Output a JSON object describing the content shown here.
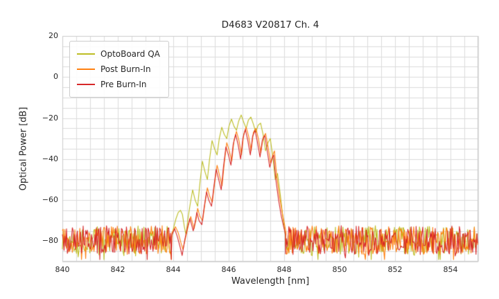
{
  "chart_data": {
    "type": "line",
    "title": "D4683 V20817 Ch. 4",
    "xlabel": "Wavelength [nm]",
    "ylabel": "Optical Power [dB]",
    "xlim": [
      840,
      855
    ],
    "ylim": [
      -90,
      20
    ],
    "xticks": [
      840,
      842,
      844,
      846,
      848,
      850,
      852,
      854
    ],
    "xticklabels": [
      "840",
      "842",
      "844",
      "846",
      "848",
      "850",
      "852",
      "854"
    ],
    "yticks": [
      20,
      0,
      -20,
      -40,
      -60,
      -80
    ],
    "yticklabels": [
      "20",
      "0",
      "−20",
      "−40",
      "−60",
      "−80"
    ],
    "grid": {
      "on": true,
      "x_step": 0.5,
      "y_step": 5,
      "color": "#dcdcdc",
      "edge_color": "#cccccc"
    },
    "legend": {
      "position": "upper left"
    },
    "noise_floor": {
      "mean": -79.5,
      "half_spread": 7,
      "left_end": 843.95,
      "right_start": 848.05,
      "step": 0.03,
      "seed": 1337
    },
    "series": [
      {
        "name": "OptoBoard QA",
        "color": "#bcbd22",
        "points": [
          [
            843.95,
            -78
          ],
          [
            844.02,
            -73
          ],
          [
            844.1,
            -69
          ],
          [
            844.18,
            -66
          ],
          [
            844.26,
            -65
          ],
          [
            844.33,
            -67
          ],
          [
            844.4,
            -73
          ],
          [
            844.46,
            -77
          ],
          [
            844.53,
            -69
          ],
          [
            844.61,
            -62
          ],
          [
            844.7,
            -55
          ],
          [
            844.79,
            -60
          ],
          [
            844.88,
            -63
          ],
          [
            844.96,
            -52
          ],
          [
            845.05,
            -41
          ],
          [
            845.14,
            -46
          ],
          [
            845.23,
            -50
          ],
          [
            845.31,
            -40
          ],
          [
            845.4,
            -31
          ],
          [
            845.49,
            -35
          ],
          [
            845.58,
            -38
          ],
          [
            845.66,
            -30
          ],
          [
            845.75,
            -24.5
          ],
          [
            845.84,
            -28
          ],
          [
            845.93,
            -30
          ],
          [
            846.01,
            -24
          ],
          [
            846.1,
            -20.5
          ],
          [
            846.19,
            -24
          ],
          [
            846.28,
            -26
          ],
          [
            846.36,
            -21.5
          ],
          [
            846.45,
            -18.5
          ],
          [
            846.54,
            -22
          ],
          [
            846.63,
            -25
          ],
          [
            846.71,
            -21
          ],
          [
            846.8,
            -19.5
          ],
          [
            846.89,
            -23
          ],
          [
            846.98,
            -27
          ],
          [
            847.06,
            -23.5
          ],
          [
            847.15,
            -22.5
          ],
          [
            847.24,
            -28
          ],
          [
            847.33,
            -36
          ],
          [
            847.42,
            -32
          ],
          [
            847.5,
            -30
          ],
          [
            847.6,
            -40
          ],
          [
            847.68,
            -50
          ],
          [
            847.76,
            -47
          ],
          [
            847.85,
            -56
          ],
          [
            847.95,
            -68
          ],
          [
            848.05,
            -78
          ]
        ]
      },
      {
        "name": "Post Burn-In",
        "color": "#ff7f0e",
        "points": [
          [
            843.95,
            -76
          ],
          [
            844.08,
            -73
          ],
          [
            844.18,
            -76
          ],
          [
            844.28,
            -81
          ],
          [
            844.35,
            -84
          ],
          [
            844.45,
            -78
          ],
          [
            844.55,
            -72
          ],
          [
            844.63,
            -68
          ],
          [
            844.69,
            -71
          ],
          [
            844.75,
            -74
          ],
          [
            844.83,
            -69
          ],
          [
            844.88,
            -64
          ],
          [
            844.96,
            -68
          ],
          [
            845.06,
            -70
          ],
          [
            845.14,
            -62
          ],
          [
            845.23,
            -54
          ],
          [
            845.31,
            -58
          ],
          [
            845.41,
            -61
          ],
          [
            845.49,
            -52
          ],
          [
            845.58,
            -43
          ],
          [
            845.67,
            -48
          ],
          [
            845.76,
            -53
          ],
          [
            845.84,
            -42
          ],
          [
            845.93,
            -32
          ],
          [
            846.02,
            -36
          ],
          [
            846.11,
            -41
          ],
          [
            846.19,
            -31
          ],
          [
            846.28,
            -26.5
          ],
          [
            846.37,
            -31
          ],
          [
            846.46,
            -38
          ],
          [
            846.54,
            -28
          ],
          [
            846.63,
            -24.5
          ],
          [
            846.72,
            -29
          ],
          [
            846.81,
            -36
          ],
          [
            846.89,
            -27
          ],
          [
            846.98,
            -25
          ],
          [
            847.07,
            -30
          ],
          [
            847.16,
            -37
          ],
          [
            847.24,
            -29.5
          ],
          [
            847.33,
            -27.5
          ],
          [
            847.42,
            -34
          ],
          [
            847.51,
            -42
          ],
          [
            847.59,
            -38
          ],
          [
            847.65,
            -36
          ],
          [
            847.73,
            -48
          ],
          [
            847.83,
            -58
          ],
          [
            847.93,
            -66
          ],
          [
            848.03,
            -73
          ],
          [
            848.07,
            -76
          ]
        ]
      },
      {
        "name": "Pre Burn-In",
        "color": "#d62728",
        "points": [
          [
            843.95,
            -77
          ],
          [
            844.05,
            -74
          ],
          [
            844.15,
            -78
          ],
          [
            844.25,
            -83
          ],
          [
            844.32,
            -87
          ],
          [
            844.42,
            -79
          ],
          [
            844.52,
            -73
          ],
          [
            844.6,
            -69
          ],
          [
            844.66,
            -72
          ],
          [
            844.72,
            -75
          ],
          [
            844.8,
            -70
          ],
          [
            844.85,
            -66
          ],
          [
            844.93,
            -70
          ],
          [
            845.03,
            -72
          ],
          [
            845.11,
            -64
          ],
          [
            845.2,
            -56
          ],
          [
            845.28,
            -60
          ],
          [
            845.38,
            -63
          ],
          [
            845.46,
            -54
          ],
          [
            845.55,
            -45
          ],
          [
            845.64,
            -50
          ],
          [
            845.73,
            -55
          ],
          [
            845.81,
            -44
          ],
          [
            845.9,
            -34
          ],
          [
            845.99,
            -38
          ],
          [
            846.08,
            -43
          ],
          [
            846.16,
            -33
          ],
          [
            846.25,
            -28
          ],
          [
            846.34,
            -33
          ],
          [
            846.43,
            -40
          ],
          [
            846.51,
            -30
          ],
          [
            846.6,
            -25.5
          ],
          [
            846.69,
            -31
          ],
          [
            846.78,
            -38
          ],
          [
            846.86,
            -29
          ],
          [
            846.95,
            -26
          ],
          [
            847.04,
            -32
          ],
          [
            847.13,
            -39
          ],
          [
            847.21,
            -31
          ],
          [
            847.3,
            -28.5
          ],
          [
            847.39,
            -36
          ],
          [
            847.48,
            -44
          ],
          [
            847.56,
            -40
          ],
          [
            847.62,
            -38
          ],
          [
            847.7,
            -50
          ],
          [
            847.8,
            -60
          ],
          [
            847.9,
            -68
          ],
          [
            848.0,
            -74
          ],
          [
            848.05,
            -77
          ]
        ]
      }
    ]
  }
}
